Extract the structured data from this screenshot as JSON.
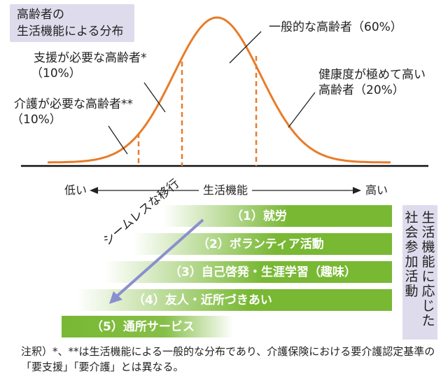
{
  "title": {
    "line1": "高齢者の",
    "line2": "生活機能による分布"
  },
  "segments": {
    "general": "一般的な高齢者（60%）",
    "support_line1": "支援が必要な高齢者*",
    "support_line2": "（10%）",
    "care_line1": "介護が必要な高齢者**",
    "care_line2": "（10%）",
    "healthy_line1": "健康度が極めて高い",
    "healthy_line2": "高齢者（20%）"
  },
  "axis": {
    "low": "低い",
    "label": "生活機能",
    "high": "高い"
  },
  "seamless_label": "シームレスな移行",
  "activities": [
    "（1）就労",
    "（2）ボランティア活動",
    "（3）自己啓発・生涯学習（趣味）",
    "（4）友人・近所づきあい",
    "（5）通所サービス"
  ],
  "side_box": {
    "col_right": "生活機能に応じた",
    "col_left": "社会参加活動"
  },
  "note": "注釈）*、**は生活機能による一般的な分布であり、介護保険における要介護認定基準の「要支援」「要介護」とは異なる。",
  "colors": {
    "curve": "#e87c2a",
    "bar_green": "#78b833",
    "label_box": "#dedcec",
    "arrow": "#8a8fcf"
  }
}
